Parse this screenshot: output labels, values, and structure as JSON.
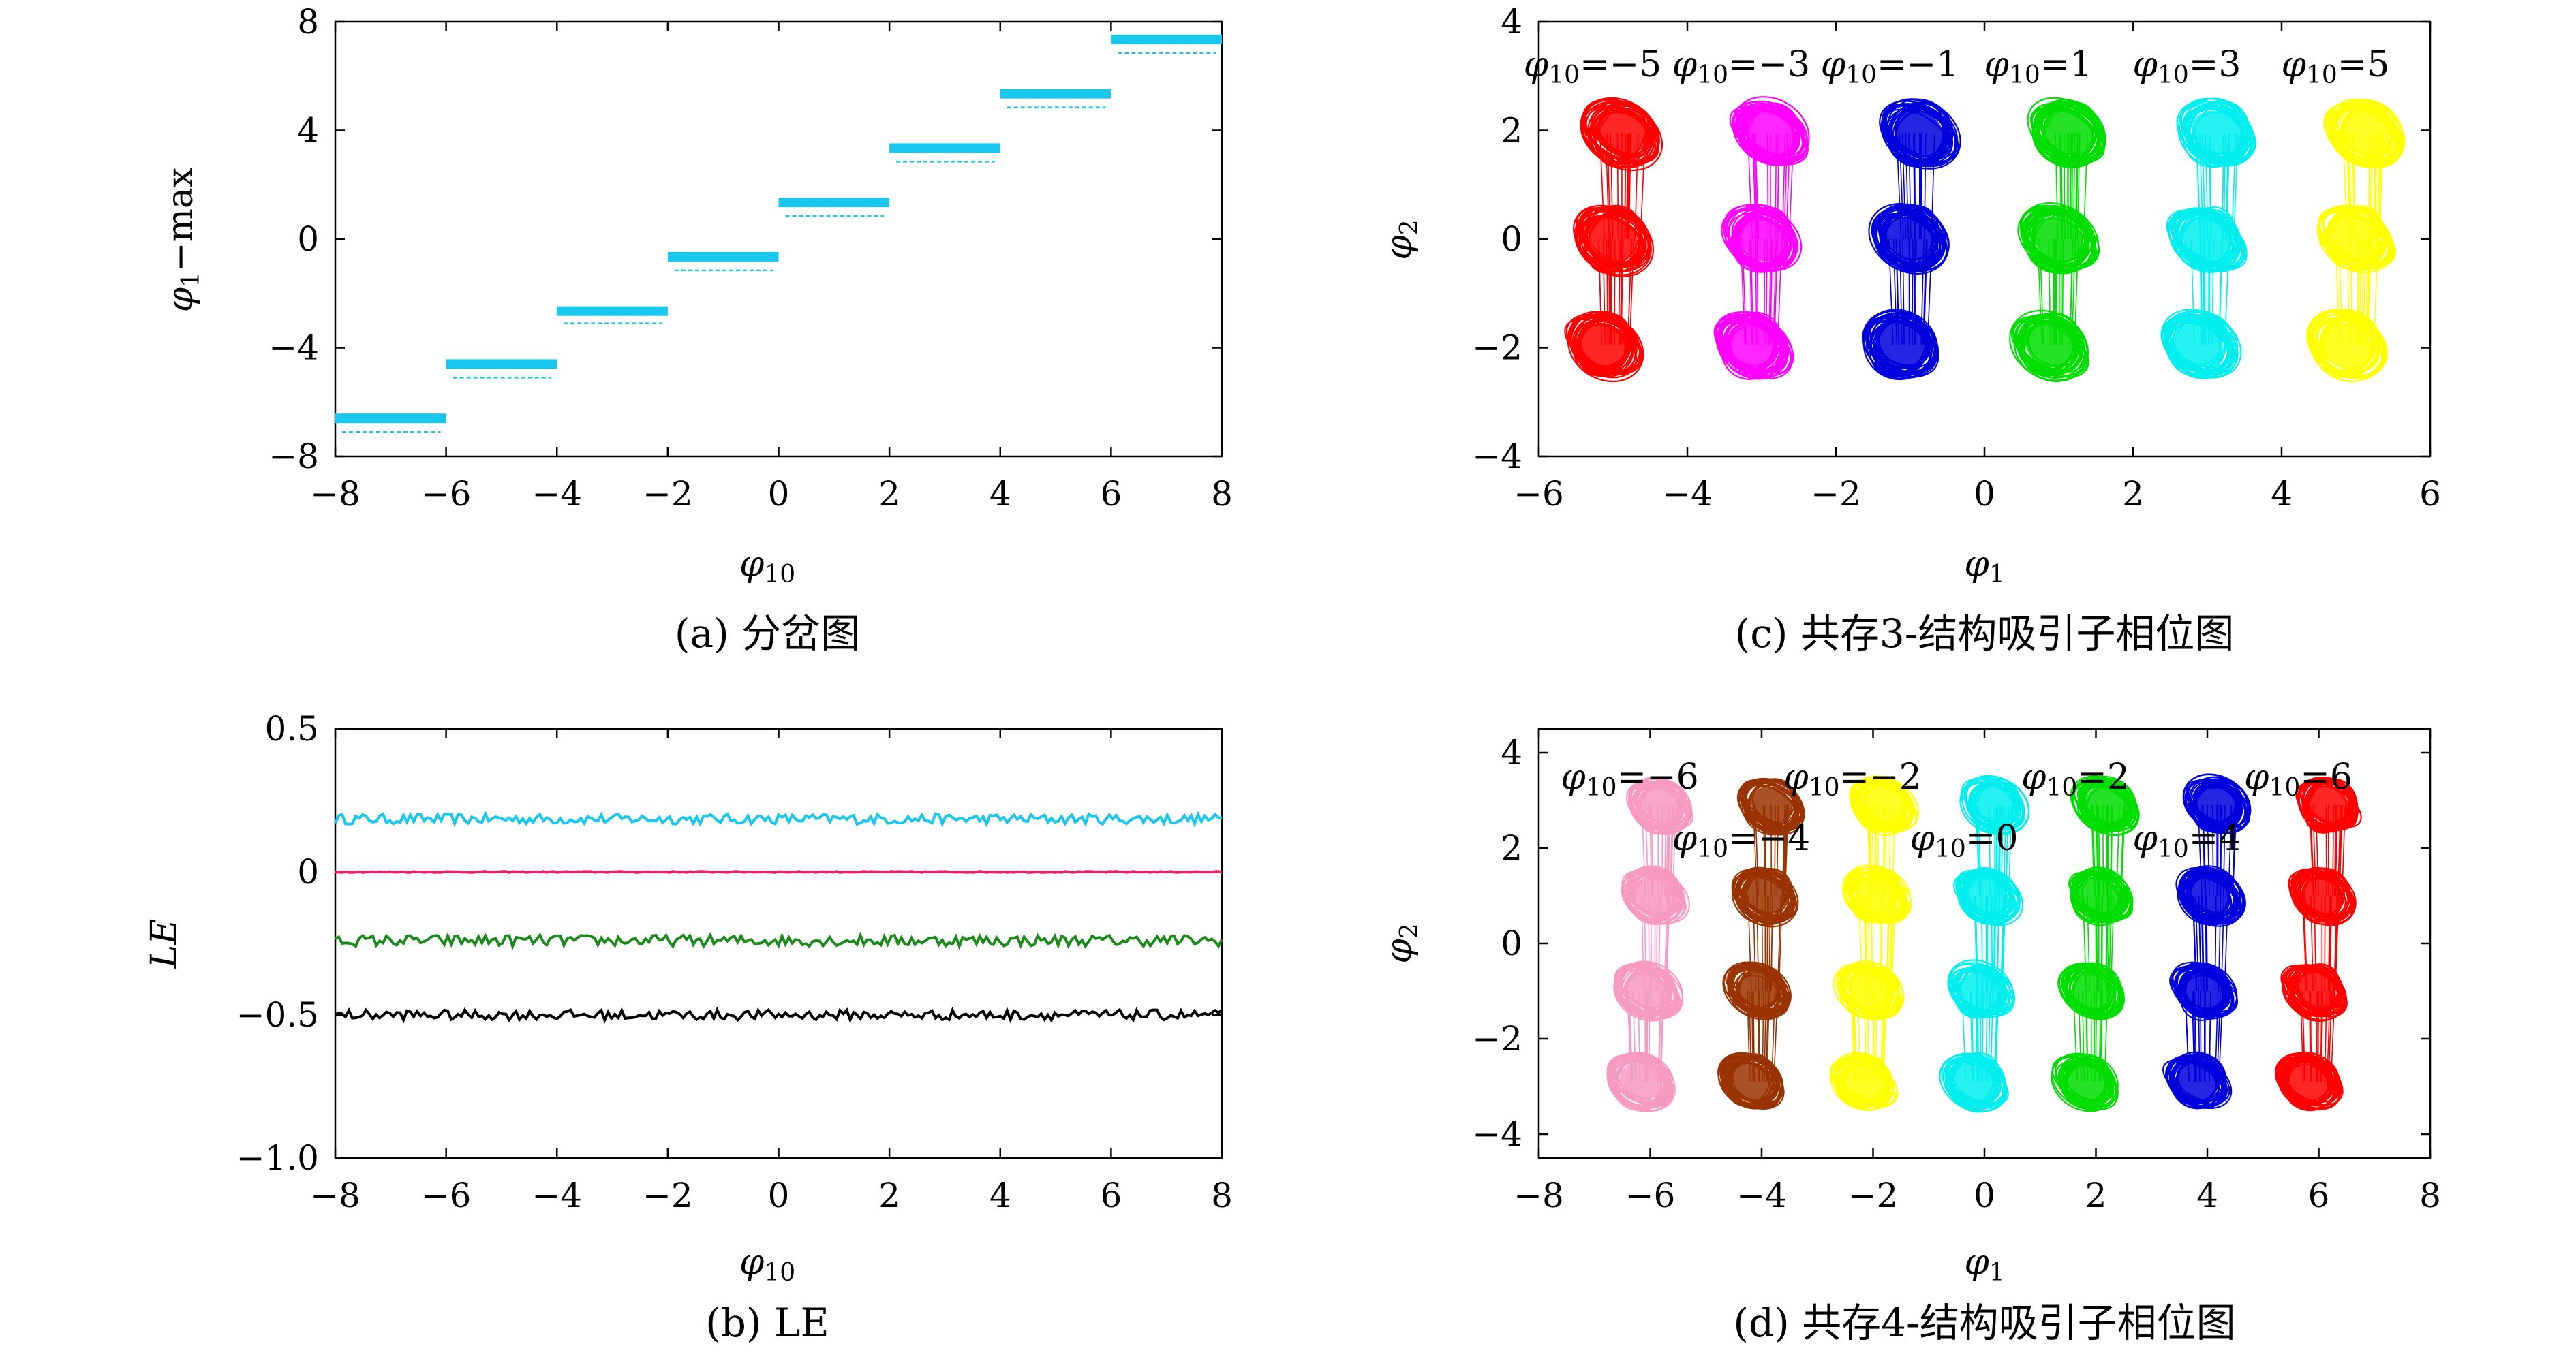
{
  "chart_data": [
    {
      "id": "a",
      "type": "scatter",
      "caption": "(a) 分岔图",
      "xlabel": "φ10",
      "ylabel": "φ1−max",
      "xlim": [
        -8,
        8
      ],
      "ylim": [
        -8,
        8
      ],
      "xticks": [
        -8,
        -6,
        -4,
        -2,
        0,
        2,
        4,
        6,
        8
      ],
      "yticks": [
        -8,
        -4,
        0,
        4,
        8
      ],
      "xtick_labels": [
        "−8",
        "−6",
        "−4",
        "−2",
        "0",
        "2",
        "4",
        "6",
        "8"
      ],
      "ytick_labels": [
        "−8",
        "−4",
        "0",
        "4",
        "8"
      ],
      "color": "#19c6ee",
      "segments": [
        {
          "x": [
            -8,
            -6
          ],
          "y_main": -6.6,
          "y_low": -7.1
        },
        {
          "x": [
            -6,
            -4
          ],
          "y_main": -4.6,
          "y_low": -5.1
        },
        {
          "x": [
            -4,
            -2
          ],
          "y_main": -2.65,
          "y_low": -3.1
        },
        {
          "x": [
            -2,
            0
          ],
          "y_main": -0.65,
          "y_low": -1.15
        },
        {
          "x": [
            0,
            2
          ],
          "y_main": 1.35,
          "y_low": 0.85
        },
        {
          "x": [
            2,
            4
          ],
          "y_main": 3.35,
          "y_low": 2.85
        },
        {
          "x": [
            4,
            6
          ],
          "y_main": 5.35,
          "y_low": 4.85
        },
        {
          "x": [
            6,
            8
          ],
          "y_main": 7.35,
          "y_low": 6.85
        }
      ]
    },
    {
      "id": "b",
      "type": "line",
      "caption": "(b) LE",
      "xlabel": "φ10",
      "ylabel": "LE",
      "xlim": [
        -8,
        8
      ],
      "ylim": [
        -1.0,
        0.5
      ],
      "xticks": [
        -8,
        -6,
        -4,
        -2,
        0,
        2,
        4,
        6,
        8
      ],
      "yticks": [
        -1.0,
        -0.5,
        0,
        0.5
      ],
      "xtick_labels": [
        "−8",
        "−6",
        "−4",
        "−2",
        "0",
        "2",
        "4",
        "6",
        "8"
      ],
      "ytick_labels": [
        "−1.0",
        "−0.5",
        "0",
        "0.5"
      ],
      "series": [
        {
          "mean": 0.185,
          "noise": 0.018,
          "color": "#19c6ee"
        },
        {
          "mean": 0.0,
          "noise": 0.002,
          "color": "#e8206a"
        },
        {
          "mean": -0.24,
          "noise": 0.02,
          "color": "#1a8a1a"
        },
        {
          "mean": -0.5,
          "noise": 0.018,
          "color": "#000000"
        }
      ]
    },
    {
      "id": "c",
      "type": "scatter",
      "caption": "(c) 共存3-结构吸引子相位图",
      "xlabel": "φ1",
      "ylabel": "φ2",
      "xlim": [
        -6,
        6
      ],
      "ylim": [
        -4,
        4
      ],
      "xticks": [
        -6,
        -4,
        -2,
        0,
        2,
        4,
        6
      ],
      "yticks": [
        -4,
        -2,
        0,
        2,
        4
      ],
      "xtick_labels": [
        "−6",
        "−4",
        "−2",
        "0",
        "2",
        "4",
        "6"
      ],
      "ytick_labels": [
        "−4",
        "−2",
        "0",
        "2",
        "4"
      ],
      "attractors": [
        {
          "label": "φ10=−5",
          "center": -5,
          "color": "#ff0000"
        },
        {
          "label": "φ10=−3",
          "center": -3,
          "color": "#ff00ff"
        },
        {
          "label": "φ10=−1",
          "center": -1,
          "color": "#0000dd"
        },
        {
          "label": "φ10=1",
          "center": 1,
          "color": "#00dd00"
        },
        {
          "label": "φ10=3",
          "center": 3,
          "color": "#00eeee"
        },
        {
          "label": "φ10=5",
          "center": 5,
          "color": "#ffff00"
        }
      ],
      "lobes_y": [
        1.95,
        0.0,
        -1.95
      ]
    },
    {
      "id": "d",
      "type": "scatter",
      "caption": "(d) 共存4-结构吸引子相位图",
      "xlabel": "φ1",
      "ylabel": "φ2",
      "xlim": [
        -8,
        8
      ],
      "ylim": [
        -4.5,
        4.5
      ],
      "xticks": [
        -8,
        -6,
        -4,
        -2,
        0,
        2,
        4,
        6,
        8
      ],
      "yticks": [
        -4,
        -2,
        0,
        2,
        4
      ],
      "xtick_labels": [
        "−8",
        "−6",
        "−4",
        "−2",
        "0",
        "2",
        "4",
        "6",
        "8"
      ],
      "ytick_labels": [
        "−4",
        "−2",
        "0",
        "2",
        "4"
      ],
      "attractors": [
        {
          "label": "φ10=−6",
          "center": -6,
          "color": "#f79ac0"
        },
        {
          "label": "φ10=−4",
          "center": -4,
          "color": "#993300"
        },
        {
          "label": "φ10=−2",
          "center": -2,
          "color": "#ffff00"
        },
        {
          "label": "φ10=0",
          "center": 0,
          "color": "#00eeee"
        },
        {
          "label": "φ10=2",
          "center": 2,
          "color": "#00dd00"
        },
        {
          "label": "φ10=4",
          "center": 4,
          "color": "#0000dd"
        },
        {
          "label": "φ10=6",
          "center": 6,
          "color": "#ff0000"
        }
      ],
      "lobes_y": [
        2.9,
        1.0,
        -1.0,
        -2.9
      ]
    }
  ]
}
